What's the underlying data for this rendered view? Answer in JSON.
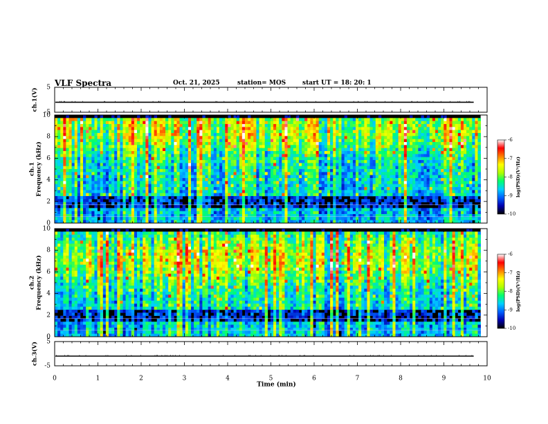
{
  "header": {
    "title": "VLF Spectra",
    "date": "Oct. 21, 2025",
    "station": "station= MOS",
    "start": "start  UT =   18: 20: 1"
  },
  "chart_data": {
    "type": "heatmap",
    "title": "VLF Spectra",
    "xlabel": "Time (min)",
    "xlim": [
      0,
      10
    ],
    "x_ticks": [
      "0",
      "1",
      "2",
      "3",
      "4",
      "5",
      "6",
      "7",
      "8",
      "9",
      "10"
    ],
    "panels": [
      {
        "id": "ch1_waveform",
        "type": "line",
        "ylabel": "ch.1(V)",
        "ylim": [
          -5,
          5
        ],
        "y_ticks": [
          "5",
          "-5"
        ],
        "level": -1.0
      },
      {
        "id": "ch1_spectrogram",
        "type": "heatmap",
        "ylabel": "ch.1\nFrequency (kHz)",
        "ylim": [
          0,
          10
        ],
        "y_ticks": [
          "0",
          "2",
          "4",
          "6",
          "8",
          "10"
        ],
        "colorbar": {
          "label": "log(PSD)(V²/Hz)",
          "range": [
            -10,
            -6
          ],
          "ticks": [
            "-6",
            "-7",
            "-8",
            "-9",
            "-10"
          ]
        }
      },
      {
        "id": "ch2_spectrogram",
        "type": "heatmap",
        "ylabel": "ch.2\nFrequency (kHz)",
        "ylim": [
          0,
          10
        ],
        "y_ticks": [
          "0",
          "2",
          "4",
          "6",
          "8",
          "10"
        ],
        "colorbar": {
          "label": "log(PSD)(V²/Hz)",
          "range": [
            -10,
            -6
          ],
          "ticks": [
            "-6",
            "-7",
            "-8",
            "-9",
            "-10"
          ]
        }
      },
      {
        "id": "ch3_waveform",
        "type": "line",
        "ylabel": "ch.3(V)",
        "ylim": [
          -5,
          5
        ],
        "y_ticks": [
          "5",
          "-5"
        ],
        "level": -1.0
      }
    ],
    "data_end_min": 9.85,
    "colorscale": [
      "#000000",
      "#0000b0",
      "#0060ff",
      "#00d0ff",
      "#00ff70",
      "#b0ff00",
      "#ffff00",
      "#ff8000",
      "#ff0000",
      "#ffffff"
    ]
  }
}
